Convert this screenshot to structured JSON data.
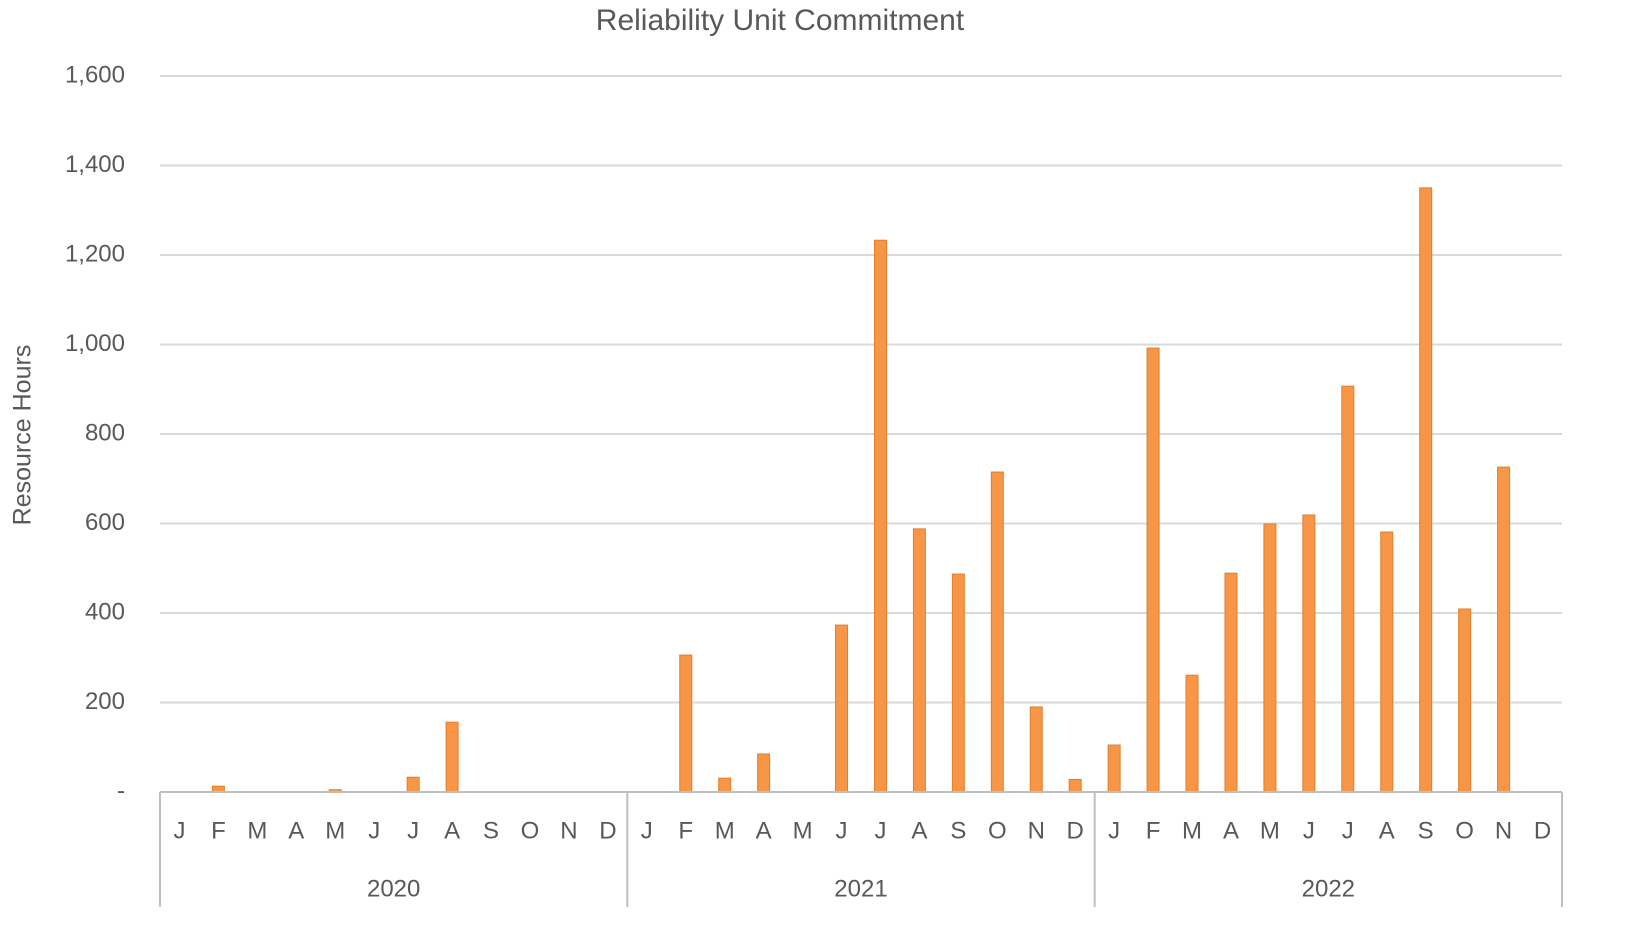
{
  "chart_data": {
    "type": "bar",
    "title": "Reliability Unit Commitment",
    "y_label": "Resource Hours",
    "categories": [
      "J",
      "F",
      "M",
      "A",
      "M",
      "J",
      "J",
      "A",
      "S",
      "O",
      "N",
      "D",
      "J",
      "F",
      "M",
      "A",
      "M",
      "J",
      "J",
      "A",
      "S",
      "O",
      "N",
      "D",
      "J",
      "F",
      "M",
      "A",
      "M",
      "J",
      "J",
      "A",
      "S",
      "O",
      "N",
      "D"
    ],
    "groups": [
      "2020",
      "2021",
      "2022"
    ],
    "values": [
      0,
      13,
      0,
      0,
      5,
      0,
      33,
      156,
      0,
      0,
      0,
      0,
      0,
      306,
      31,
      85,
      0,
      373,
      1233,
      588,
      487,
      715,
      190,
      28,
      105,
      992,
      261,
      489,
      599,
      619,
      907,
      581,
      1350,
      409,
      726,
      0
    ],
    "color": "#f79646",
    "ylim": [
      0,
      1600
    ],
    "yticks": [
      {
        "value": 0,
        "label": "-"
      },
      200,
      400,
      600,
      800,
      {
        "value": 1000,
        "label": "1,000"
      },
      {
        "value": 1200,
        "label": "1,200"
      },
      {
        "value": 1400,
        "label": "1,400"
      },
      {
        "value": 1600,
        "label": "1,600"
      }
    ],
    "grid": true
  }
}
